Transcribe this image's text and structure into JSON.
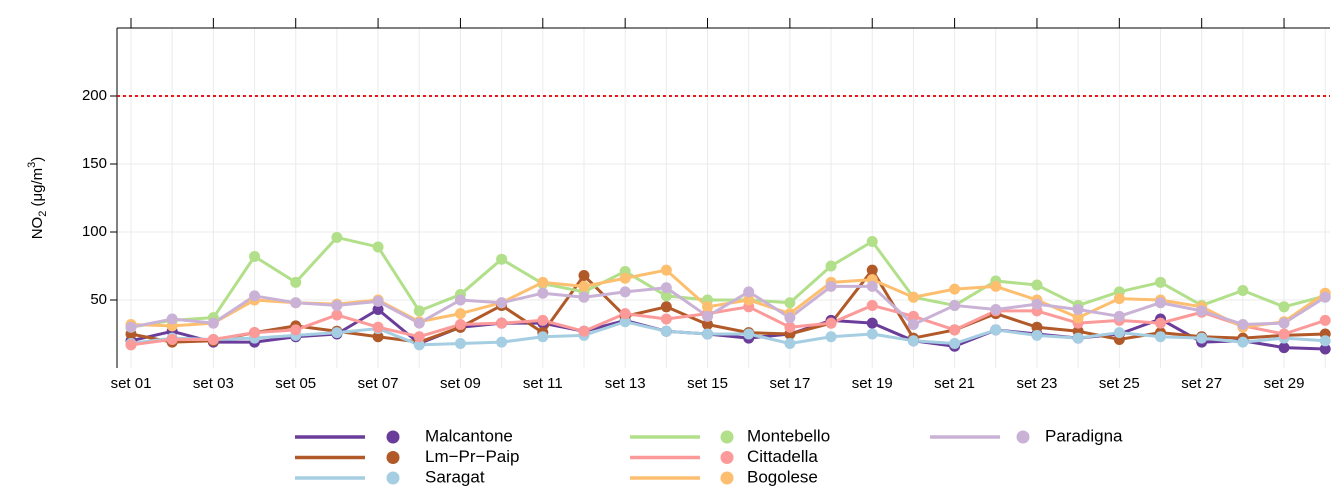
{
  "chart_data": {
    "type": "line",
    "ylabel": {
      "main": "NO",
      "sub": "2",
      "unit": " (μg/m",
      "sup": "3",
      "end": ")"
    },
    "categories": [
      "set 01",
      null,
      "set 03",
      null,
      "set 05",
      null,
      "set 07",
      null,
      "set 09",
      null,
      "set 11",
      null,
      "set 13",
      null,
      "set 15",
      null,
      "set 17",
      null,
      "set 19",
      null,
      "set 21",
      null,
      "set 23",
      null,
      "set 25",
      null,
      "set 27",
      null,
      "set 29",
      null
    ],
    "ylim": [
      0,
      250
    ],
    "yticks": [
      50,
      100,
      150,
      200
    ],
    "grid": true,
    "threshold": {
      "value": 200,
      "color": "#e41a1c"
    },
    "series": [
      {
        "name": "Malcantone",
        "color": "#6a3d9a",
        "values": [
          20,
          27,
          19,
          19,
          23,
          25,
          43,
          18,
          30,
          33,
          33,
          27,
          35,
          27,
          25,
          22,
          25,
          35,
          33,
          20,
          16,
          28,
          25,
          22,
          25,
          36,
          19,
          20,
          15,
          14
        ]
      },
      {
        "name": "Lm−Pr−Paip",
        "color": "#b15928",
        "values": [
          25,
          19,
          20,
          26,
          31,
          27,
          23,
          19,
          30,
          46,
          26,
          68,
          38,
          45,
          32,
          26,
          25,
          33,
          72,
          22,
          28,
          40,
          30,
          27,
          21,
          26,
          23,
          22,
          24,
          25
        ]
      },
      {
        "name": "Saragat",
        "color": "#a6cee3",
        "values": [
          18,
          22,
          21,
          22,
          24,
          26,
          29,
          17,
          18,
          19,
          23,
          24,
          34,
          27,
          25,
          25,
          18,
          23,
          25,
          20,
          18,
          28,
          24,
          22,
          26,
          23,
          22,
          19,
          22,
          20
        ]
      },
      {
        "name": "Montebello",
        "color": "#b2df8a",
        "values": [
          30,
          35,
          37,
          82,
          63,
          96,
          89,
          42,
          54,
          80,
          62,
          56,
          71,
          53,
          50,
          50,
          48,
          75,
          93,
          52,
          46,
          64,
          61,
          46,
          56,
          63,
          46,
          57,
          45,
          53
        ]
      },
      {
        "name": "Cittadella",
        "color": "#fb9a99",
        "values": [
          17,
          21,
          21,
          26,
          28,
          39,
          30,
          23,
          32,
          33,
          35,
          27,
          40,
          36,
          40,
          45,
          30,
          33,
          46,
          38,
          28,
          42,
          42,
          33,
          35,
          33,
          41,
          31,
          25,
          35
        ]
      },
      {
        "name": "Bogolese",
        "color": "#fdbf6f",
        "values": [
          32,
          31,
          33,
          50,
          48,
          47,
          50,
          34,
          40,
          48,
          63,
          60,
          66,
          72,
          45,
          50,
          40,
          63,
          65,
          52,
          58,
          60,
          50,
          37,
          51,
          50,
          45,
          30,
          34,
          55
        ]
      },
      {
        "name": "Paradigna",
        "color": "#cab2d6",
        "values": [
          30,
          36,
          33,
          53,
          48,
          46,
          49,
          33,
          50,
          48,
          55,
          52,
          56,
          59,
          38,
          56,
          37,
          60,
          60,
          32,
          46,
          43,
          47,
          43,
          38,
          48,
          42,
          32,
          33,
          52
        ]
      }
    ]
  }
}
